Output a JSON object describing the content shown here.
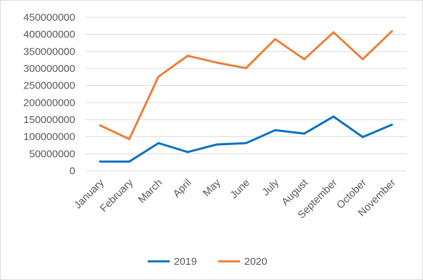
{
  "chart_data": {
    "type": "line",
    "title": "",
    "xlabel": "",
    "ylabel": "",
    "categories": [
      "January",
      "February",
      "March",
      "April",
      "May",
      "June",
      "July",
      "August",
      "September",
      "October",
      "November"
    ],
    "series": [
      {
        "name": "2019",
        "color": "#0070c0",
        "values": [
          27000000,
          27000000,
          81000000,
          55000000,
          77000000,
          81000000,
          119000000,
          109000000,
          159000000,
          99000000,
          135000000
        ]
      },
      {
        "name": "2020",
        "color": "#ed7d31",
        "values": [
          133000000,
          93000000,
          276000000,
          337000000,
          317000000,
          301000000,
          386000000,
          327000000,
          406000000,
          327000000,
          409000000
        ]
      }
    ],
    "ylim": [
      0,
      450000000
    ],
    "yticks": [
      "0",
      "50000000",
      "100000000",
      "150000000",
      "200000000",
      "250000000",
      "300000000",
      "350000000",
      "400000000",
      "450000000"
    ],
    "grid": true,
    "gridline_color": "#d9d9d9",
    "legend_position": "bottom"
  }
}
